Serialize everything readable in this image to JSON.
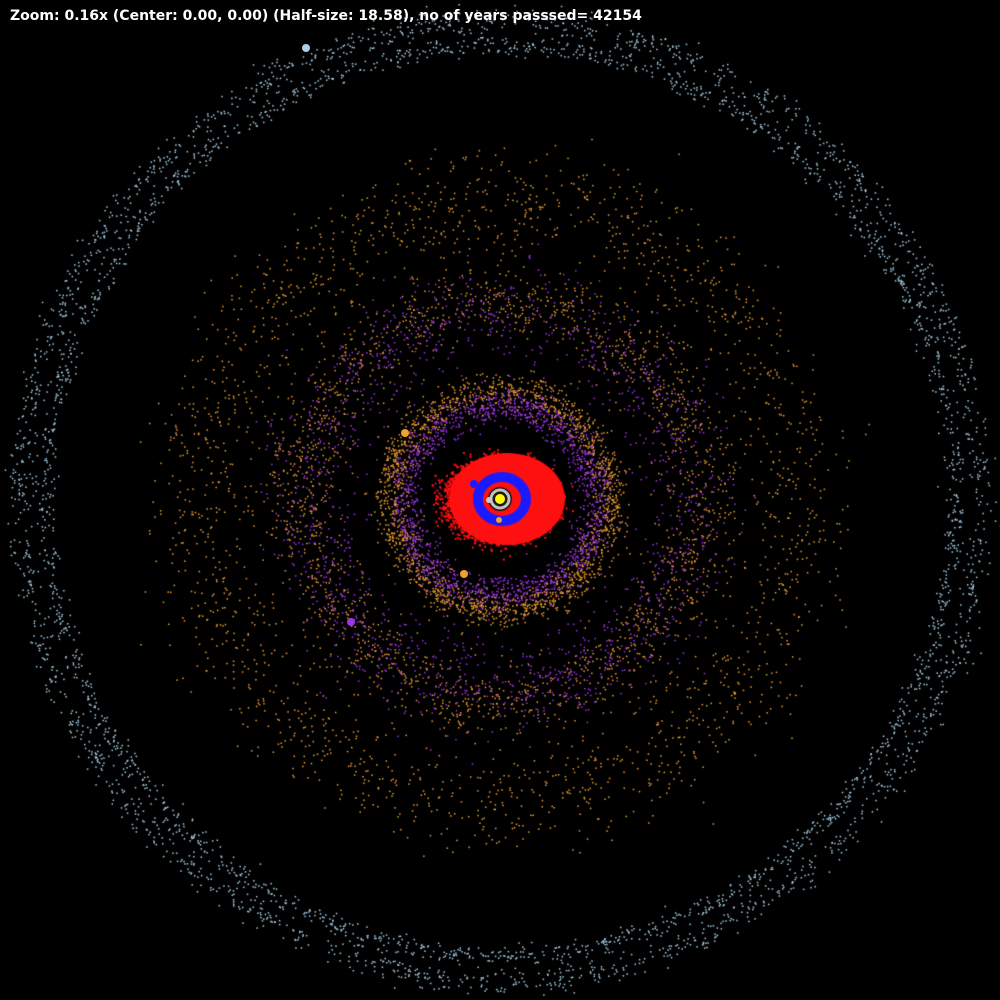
{
  "status": {
    "zoom_label": "Zoom:",
    "zoom_value": "0.16x",
    "center_text": "(Center: 0.00, 0.00)",
    "half_size_text": "(Half-size: 18.58),",
    "years_label": "no of years passsed=",
    "years_value": "42154"
  },
  "view": {
    "zoom": 0.16,
    "center": [
      0.0,
      0.0
    ],
    "half_size": 18.58,
    "years_passed": 42154
  },
  "colors": {
    "background": "#000000",
    "star": "#ffff00",
    "inner_ring": "#c0c0c0",
    "ring_blue": "#1a1aff",
    "ring_red": "#ff1010",
    "ring_purple": "#a035e8",
    "ring_orange": "#f0a030",
    "ring_lightblue": "#a8d0e8",
    "text": "#ffffff"
  },
  "icons": {
    "star": "sun-icon",
    "planet": "planet-icon"
  },
  "rings": [
    {
      "name": "red-belt",
      "color": "#ff1010",
      "count": 1600
    },
    {
      "name": "blue-belt",
      "color": "#1a1aff",
      "count": 500
    },
    {
      "name": "purple-belt",
      "color": "#a035e8",
      "count": 3000
    },
    {
      "name": "orange-belt",
      "color": "#f0a030",
      "count": 5500
    },
    {
      "name": "outer-belt",
      "color": "#a8d0e8",
      "count": 3800
    }
  ],
  "planets": [
    {
      "name": "planet-yellow",
      "color": "#ffff00"
    },
    {
      "name": "planet-gray",
      "color": "#c8c8c8"
    },
    {
      "name": "planet-blue",
      "color": "#1a1aff"
    },
    {
      "name": "planet-red",
      "color": "#ff1010"
    },
    {
      "name": "planet-orange-a",
      "color": "#f0a030"
    },
    {
      "name": "planet-orange-b",
      "color": "#f0a030"
    },
    {
      "name": "planet-purple",
      "color": "#a035e8"
    },
    {
      "name": "planet-lightblue",
      "color": "#a8d0e8"
    }
  ]
}
